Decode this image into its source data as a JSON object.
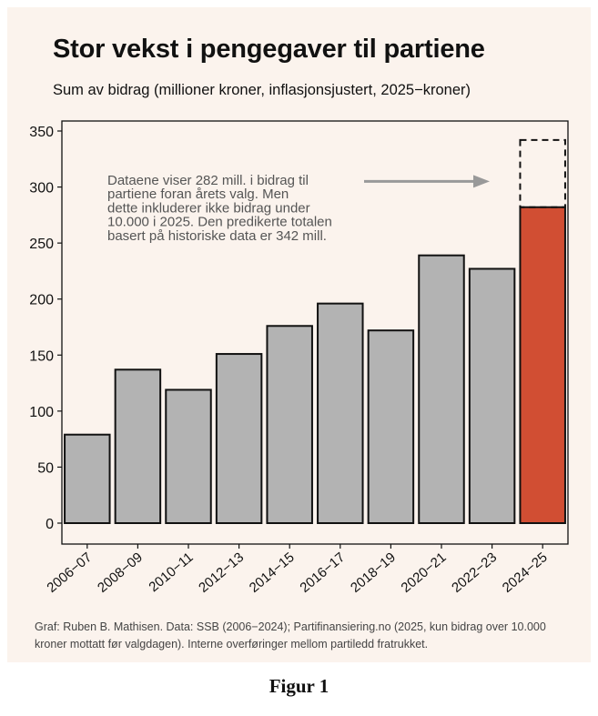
{
  "chart_data": {
    "type": "bar",
    "title": "Stor vekst i pengegaver til partiene",
    "subtitle": "Sum av bidrag (millioner kroner, inflasjonsjustert, 2025−kroner)",
    "categories": [
      "2006−07",
      "2008−09",
      "2010−11",
      "2012−13",
      "2014−15",
      "2016−17",
      "2018−19",
      "2020−21",
      "2022−23",
      "2024−25"
    ],
    "values": [
      79,
      137,
      119,
      151,
      176,
      196,
      172,
      239,
      227,
      282
    ],
    "predicted_total": 342,
    "highlight_index": 9,
    "ylim": [
      0,
      350
    ],
    "yticks": [
      0,
      50,
      100,
      150,
      200,
      250,
      300,
      350
    ],
    "colors": {
      "bar": "#b3b3b3",
      "highlight": "#d14e33",
      "arrow": "#999999",
      "background": "#fbf3ed"
    },
    "annotation": [
      "Dataene viser 282 mill. i bidrag til",
      "partiene foran årets valg. Men",
      "dette inkluderer ikke bidrag under",
      "10.000 i 2025. Den predikerte totalen",
      "basert på historiske data er 342 mill."
    ]
  },
  "caption": "Graf: Ruben B. Mathisen. Data: SSB (2006−2024); Partifinansiering.no (2025, kun bidrag over 10.000 kroner mottatt før valgdagen). Interne overføringer mellom partiledd fratrukket.",
  "figure_label": "Figur 1"
}
